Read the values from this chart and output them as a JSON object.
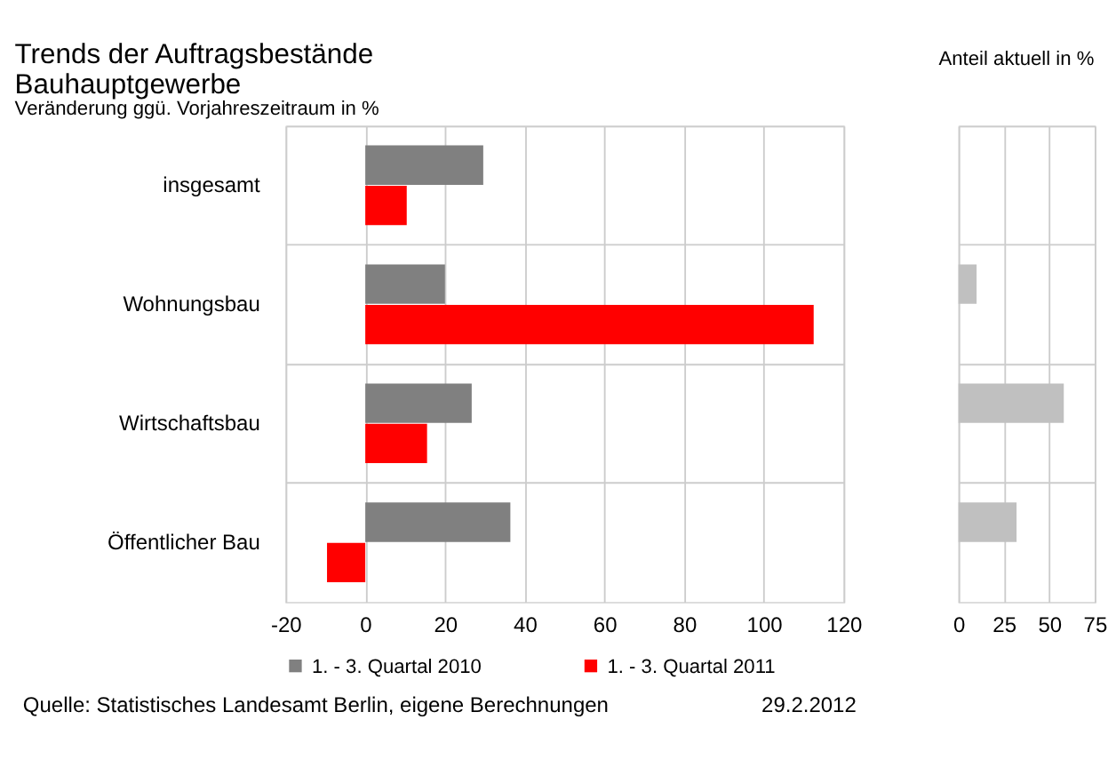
{
  "chart_data": [
    {
      "type": "bar",
      "orientation": "horizontal",
      "title": [
        "Trends der Auftragsbestände",
        "Bauhauptgewerbe"
      ],
      "subtitle": "Veränderung ggü. Vorjahreszeitraum in %",
      "categories": [
        "insgesamt",
        "Wohnungsbau",
        "Wirtschaftsbau",
        "Öffentlicher Bau"
      ],
      "series": [
        {
          "name": "1. - 3. Quartal 2010",
          "color": "#808080",
          "values": [
            29.6,
            20,
            26.7,
            36.4
          ]
        },
        {
          "name": "1. - 3. Quartal 2011",
          "color": "#ff0000",
          "values": [
            10.4,
            112.5,
            15.5,
            -9.6
          ]
        }
      ],
      "xlim": [
        -20,
        120
      ],
      "xticks": [
        -20,
        0,
        20,
        40,
        60,
        80,
        100,
        120
      ],
      "grid": true,
      "legend": "bottom",
      "annotations": [
        "Quelle: Statistisches Landesamt Berlin, eigene  Berechnungen",
        "29.2.2012"
      ]
    },
    {
      "type": "bar",
      "orientation": "horizontal",
      "title": "Anteil aktuell in %",
      "categories": [
        null,
        null,
        null,
        null
      ],
      "series": [
        {
          "color": "#c0c0c0",
          "values": [
            null,
            10,
            58,
            32
          ]
        }
      ],
      "xlim": [
        0,
        75
      ],
      "xticks": [
        0,
        25,
        50,
        75
      ],
      "grid": true,
      "tick_labels": "x"
    }
  ]
}
